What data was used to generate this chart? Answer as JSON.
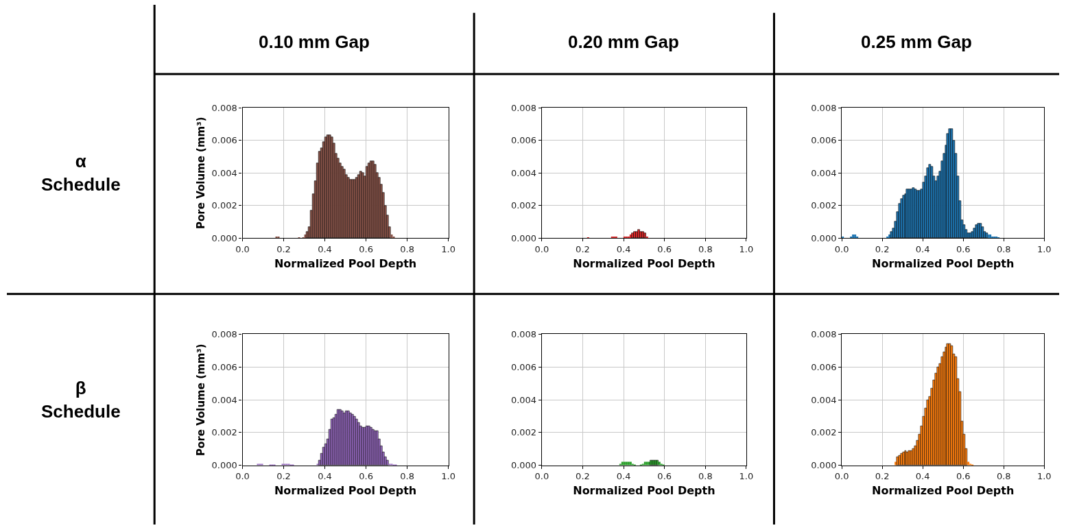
{
  "chart_data": [
    {
      "type": "histogram",
      "title": "0.10 mm Gap",
      "annotations": [
        "α\nSchedule"
      ],
      "xlabel": "Normalized Pool Depth",
      "ylabel": "Pore Volume (mm³)",
      "color": "#8c564b",
      "bins": [
        0.16,
        0.17,
        0.18,
        0.19,
        0.2,
        0.21,
        0.22,
        0.23,
        0.24,
        0.25,
        0.26,
        0.27,
        0.28,
        0.29,
        0.3,
        0.31,
        0.32,
        0.33,
        0.34,
        0.35,
        0.36,
        0.37,
        0.38,
        0.39,
        0.4,
        0.41,
        0.42,
        0.43,
        0.44,
        0.45,
        0.46,
        0.47,
        0.48,
        0.49,
        0.5,
        0.51,
        0.52,
        0.53,
        0.54,
        0.55,
        0.56,
        0.57,
        0.58,
        0.59,
        0.6,
        0.61,
        0.62,
        0.63,
        0.64,
        0.65,
        0.66,
        0.67,
        0.68,
        0.69,
        0.7,
        0.71,
        0.72,
        0.73,
        0.74
      ],
      "values": [
        0.0001,
        0.0001,
        0,
        0,
        0,
        0,
        0,
        0,
        0,
        0,
        0,
        5e-05,
        0,
        5e-05,
        0.0002,
        0.0004,
        0.0007,
        0.0017,
        0.0027,
        0.0035,
        0.0046,
        0.0053,
        0.0055,
        0.0059,
        0.0062,
        0.0063,
        0.0063,
        0.0062,
        0.0058,
        0.0052,
        0.0049,
        0.0046,
        0.0044,
        0.0042,
        0.0039,
        0.0037,
        0.0036,
        0.0036,
        0.0036,
        0.0037,
        0.0039,
        0.0041,
        0.004,
        0.0038,
        0.0044,
        0.0046,
        0.0047,
        0.0047,
        0.0045,
        0.004,
        0.0037,
        0.0033,
        0.0028,
        0.002,
        0.0014,
        0.0007,
        0.0002,
        0.0001
      ],
      "xlim": [
        0,
        1
      ],
      "xticks": [
        {
          "value": 0,
          "label": "0.0"
        },
        {
          "value": 0.2,
          "label": "0.2"
        },
        {
          "value": 0.4,
          "label": "0.4"
        },
        {
          "value": 0.6,
          "label": "0.6"
        },
        {
          "value": 0.8,
          "label": "0.8"
        },
        {
          "value": 1,
          "label": "1.0"
        }
      ],
      "ylim": [
        0,
        0.008
      ],
      "yticks": [
        {
          "value": 0,
          "label": "0.000"
        },
        {
          "value": 0.002,
          "label": "0.002"
        },
        {
          "value": 0.004,
          "label": "0.004"
        },
        {
          "value": 0.006,
          "label": "0.006"
        },
        {
          "value": 0.008,
          "label": "0.008"
        }
      ],
      "grid": true
    },
    {
      "type": "histogram",
      "title": "0.20 mm Gap",
      "xlabel": "Normalized Pool Depth",
      "color": "#d62728",
      "bins": [
        0.22,
        0.23,
        0.24,
        0.25,
        0.26,
        0.27,
        0.28,
        0.29,
        0.3,
        0.31,
        0.32,
        0.33,
        0.34,
        0.35,
        0.36,
        0.37,
        0.38,
        0.39,
        0.4,
        0.41,
        0.42,
        0.43,
        0.44,
        0.45,
        0.46,
        0.47,
        0.48,
        0.49,
        0.5,
        0.51,
        0.52
      ],
      "values": [
        5e-05,
        0,
        0,
        0,
        0,
        0,
        0,
        0,
        0,
        0,
        0,
        0,
        0.0001,
        0.0001,
        0.0001,
        0,
        0,
        0,
        0.0001,
        0.0001,
        0.0001,
        0.0002,
        0.0003,
        0.0004,
        0.0004,
        0.0005,
        0.0004,
        0.0004,
        0.0003,
        0.0001
      ],
      "xlim": [
        0,
        1
      ],
      "xticks": [
        {
          "value": 0,
          "label": "0.0"
        },
        {
          "value": 0.2,
          "label": "0.2"
        },
        {
          "value": 0.4,
          "label": "0.4"
        },
        {
          "value": 0.6,
          "label": "0.6"
        },
        {
          "value": 0.8,
          "label": "0.8"
        },
        {
          "value": 1,
          "label": "1.0"
        }
      ],
      "ylim": [
        0,
        0.008
      ],
      "yticks": [
        {
          "value": 0,
          "label": "0.000"
        },
        {
          "value": 0.002,
          "label": "0.002"
        },
        {
          "value": 0.004,
          "label": "0.004"
        },
        {
          "value": 0.006,
          "label": "0.006"
        },
        {
          "value": 0.008,
          "label": "0.008"
        }
      ],
      "grid": true
    },
    {
      "type": "histogram",
      "title": "0.25 mm Gap",
      "xlabel": "Normalized Pool Depth",
      "color": "#1f77b4",
      "bins": [
        0.0,
        0.01,
        0.02,
        0.03,
        0.04,
        0.05,
        0.06,
        0.07,
        0.08,
        0.09,
        0.1,
        0.11,
        0.12,
        0.13,
        0.14,
        0.15,
        0.16,
        0.17,
        0.18,
        0.19,
        0.2,
        0.21,
        0.22,
        0.23,
        0.24,
        0.25,
        0.26,
        0.27,
        0.28,
        0.29,
        0.3,
        0.31,
        0.32,
        0.33,
        0.34,
        0.35,
        0.36,
        0.37,
        0.38,
        0.39,
        0.4,
        0.41,
        0.42,
        0.43,
        0.44,
        0.45,
        0.46,
        0.47,
        0.48,
        0.49,
        0.5,
        0.51,
        0.52,
        0.53,
        0.54,
        0.55,
        0.56,
        0.57,
        0.58,
        0.59,
        0.6,
        0.61,
        0.62,
        0.63,
        0.64,
        0.65,
        0.66,
        0.67,
        0.68,
        0.69,
        0.7,
        0.71,
        0.72,
        0.73,
        0.74,
        0.75,
        0.76,
        0.77,
        0.78
      ],
      "values": [
        0.0001,
        0,
        0,
        0,
        0.0001,
        0.0002,
        0.0002,
        0.0001,
        0,
        0,
        0,
        0,
        0,
        0,
        0,
        0,
        0,
        0,
        0,
        0,
        0,
        0,
        0.0001,
        0.0002,
        0.0004,
        0.0006,
        0.001,
        0.0016,
        0.0021,
        0.0024,
        0.0026,
        0.0027,
        0.003,
        0.003,
        0.003,
        0.0031,
        0.003,
        0.0029,
        0.0029,
        0.003,
        0.0034,
        0.0038,
        0.0043,
        0.0045,
        0.0044,
        0.0038,
        0.0035,
        0.0038,
        0.0041,
        0.0047,
        0.0052,
        0.0057,
        0.0064,
        0.0067,
        0.0067,
        0.006,
        0.0052,
        0.0038,
        0.0023,
        0.0011,
        0.0008,
        0.0005,
        0.0003,
        0.0003,
        0.0004,
        0.0006,
        0.0008,
        0.0009,
        0.0009,
        0.0007,
        0.0004,
        0.0003,
        0.0002,
        0.0002,
        0.0001,
        0.0001,
        0.0001,
        5e-05
      ],
      "xlim": [
        0,
        1
      ],
      "xticks": [
        {
          "value": 0,
          "label": "0.0"
        },
        {
          "value": 0.2,
          "label": "0.2"
        },
        {
          "value": 0.4,
          "label": "0.4"
        },
        {
          "value": 0.6,
          "label": "0.6"
        },
        {
          "value": 0.8,
          "label": "0.8"
        },
        {
          "value": 1,
          "label": "1.0"
        }
      ],
      "ylim": [
        0,
        0.008
      ],
      "yticks": [
        {
          "value": 0,
          "label": "0.000"
        },
        {
          "value": 0.002,
          "label": "0.002"
        },
        {
          "value": 0.004,
          "label": "0.004"
        },
        {
          "value": 0.006,
          "label": "0.006"
        },
        {
          "value": 0.008,
          "label": "0.008"
        }
      ],
      "grid": true
    },
    {
      "type": "histogram",
      "annotations": [
        "β\nSchedule"
      ],
      "xlabel": "Normalized Pool Depth",
      "ylabel": "Pore Volume (mm³)",
      "color": "#9467bd",
      "bins": [
        0.07,
        0.08,
        0.09,
        0.1,
        0.11,
        0.12,
        0.13,
        0.14,
        0.15,
        0.16,
        0.17,
        0.18,
        0.19,
        0.2,
        0.21,
        0.22,
        0.23,
        0.24,
        0.25,
        0.26,
        0.27,
        0.28,
        0.29,
        0.3,
        0.31,
        0.32,
        0.33,
        0.34,
        0.35,
        0.36,
        0.37,
        0.38,
        0.39,
        0.4,
        0.41,
        0.42,
        0.43,
        0.44,
        0.45,
        0.46,
        0.47,
        0.48,
        0.49,
        0.5,
        0.51,
        0.52,
        0.53,
        0.54,
        0.55,
        0.56,
        0.57,
        0.58,
        0.59,
        0.6,
        0.61,
        0.62,
        0.63,
        0.64,
        0.65,
        0.66,
        0.67,
        0.68,
        0.69,
        0.7,
        0.71,
        0.72,
        0.73,
        0.74,
        0.75
      ],
      "values": [
        0.0001,
        0.0001,
        0.0001,
        0,
        0,
        0,
        5e-05,
        5e-05,
        5e-05,
        0,
        0,
        0,
        0.0001,
        0.0001,
        0.0001,
        0.0001,
        5e-05,
        5e-05,
        0,
        0,
        0,
        0,
        0,
        0,
        0,
        0,
        0,
        0,
        0,
        0.0001,
        0.0003,
        0.0007,
        0.0011,
        0.0013,
        0.0016,
        0.0022,
        0.0028,
        0.0029,
        0.0031,
        0.0034,
        0.0034,
        0.0033,
        0.0032,
        0.0033,
        0.0033,
        0.0032,
        0.0031,
        0.003,
        0.0028,
        0.0026,
        0.0024,
        0.0023,
        0.0023,
        0.0024,
        0.0024,
        0.0023,
        0.0022,
        0.0021,
        0.0021,
        0.0016,
        0.0012,
        0.0008,
        0.0005,
        0.0003,
        0.0001,
        0.0001,
        5e-05,
        5e-05
      ],
      "xlim": [
        0,
        1
      ],
      "xticks": [
        {
          "value": 0,
          "label": "0.0"
        },
        {
          "value": 0.2,
          "label": "0.2"
        },
        {
          "value": 0.4,
          "label": "0.4"
        },
        {
          "value": 0.6,
          "label": "0.6"
        },
        {
          "value": 0.8,
          "label": "0.8"
        },
        {
          "value": 1,
          "label": "1.0"
        }
      ],
      "ylim": [
        0,
        0.008
      ],
      "yticks": [
        {
          "value": 0,
          "label": "0.000"
        },
        {
          "value": 0.002,
          "label": "0.002"
        },
        {
          "value": 0.004,
          "label": "0.004"
        },
        {
          "value": 0.006,
          "label": "0.006"
        },
        {
          "value": 0.008,
          "label": "0.008"
        }
      ],
      "grid": true
    },
    {
      "type": "histogram",
      "xlabel": "Normalized Pool Depth",
      "color": "#2ca02c",
      "bins": [
        0.38,
        0.39,
        0.4,
        0.41,
        0.42,
        0.43,
        0.44,
        0.45,
        0.46,
        0.47,
        0.48,
        0.49,
        0.5,
        0.51,
        0.52,
        0.53,
        0.54,
        0.55,
        0.56,
        0.57,
        0.58,
        0.59,
        0.6
      ],
      "values": [
        0.0001,
        0.0002,
        0.0002,
        0.0002,
        0.0002,
        0.0002,
        0.0001,
        5e-05,
        0,
        0,
        5e-05,
        0.0001,
        0.0002,
        0.0002,
        0.0002,
        0.0003,
        0.0003,
        0.0003,
        0.0003,
        0.0002,
        0.0001,
        5e-05
      ],
      "xlim": [
        0,
        1
      ],
      "xticks": [
        {
          "value": 0,
          "label": "0.0"
        },
        {
          "value": 0.2,
          "label": "0.2"
        },
        {
          "value": 0.4,
          "label": "0.4"
        },
        {
          "value": 0.6,
          "label": "0.6"
        },
        {
          "value": 0.8,
          "label": "0.8"
        },
        {
          "value": 1,
          "label": "1.0"
        }
      ],
      "ylim": [
        0,
        0.008
      ],
      "yticks": [
        {
          "value": 0,
          "label": "0.000"
        },
        {
          "value": 0.002,
          "label": "0.002"
        },
        {
          "value": 0.004,
          "label": "0.004"
        },
        {
          "value": 0.006,
          "label": "0.006"
        },
        {
          "value": 0.008,
          "label": "0.008"
        }
      ],
      "grid": true
    },
    {
      "type": "histogram",
      "xlabel": "Normalized Pool Depth",
      "color": "#ff7f0e",
      "bins": [
        0.26,
        0.27,
        0.28,
        0.29,
        0.3,
        0.31,
        0.32,
        0.33,
        0.34,
        0.35,
        0.36,
        0.37,
        0.38,
        0.39,
        0.4,
        0.41,
        0.42,
        0.43,
        0.44,
        0.45,
        0.46,
        0.47,
        0.48,
        0.49,
        0.5,
        0.51,
        0.52,
        0.53,
        0.54,
        0.55,
        0.56,
        0.57,
        0.58,
        0.59,
        0.6,
        0.61,
        0.62,
        0.63,
        0.64,
        0.65
      ],
      "values": [
        0.0002,
        0.0005,
        0.0006,
        0.0007,
        0.0008,
        0.0009,
        0.0008,
        0.0009,
        0.0009,
        0.001,
        0.0012,
        0.0015,
        0.0019,
        0.0024,
        0.003,
        0.0035,
        0.004,
        0.0042,
        0.0047,
        0.0052,
        0.0056,
        0.006,
        0.0062,
        0.0066,
        0.0069,
        0.0072,
        0.0074,
        0.0074,
        0.0073,
        0.0068,
        0.0066,
        0.0053,
        0.0045,
        0.0027,
        0.0019,
        0.001,
        0.0002,
        0.0001,
        5e-05
      ],
      "xlim": [
        0,
        1
      ],
      "xticks": [
        {
          "value": 0,
          "label": "0.0"
        },
        {
          "value": 0.2,
          "label": "0.2"
        },
        {
          "value": 0.4,
          "label": "0.4"
        },
        {
          "value": 0.6,
          "label": "0.6"
        },
        {
          "value": 0.8,
          "label": "0.8"
        },
        {
          "value": 1,
          "label": "1.0"
        }
      ],
      "ylim": [
        0,
        0.008
      ],
      "yticks": [
        {
          "value": 0,
          "label": "0.000"
        },
        {
          "value": 0.002,
          "label": "0.002"
        },
        {
          "value": 0.004,
          "label": "0.004"
        },
        {
          "value": 0.006,
          "label": "0.006"
        },
        {
          "value": 0.008,
          "label": "0.008"
        }
      ],
      "grid": true
    }
  ]
}
